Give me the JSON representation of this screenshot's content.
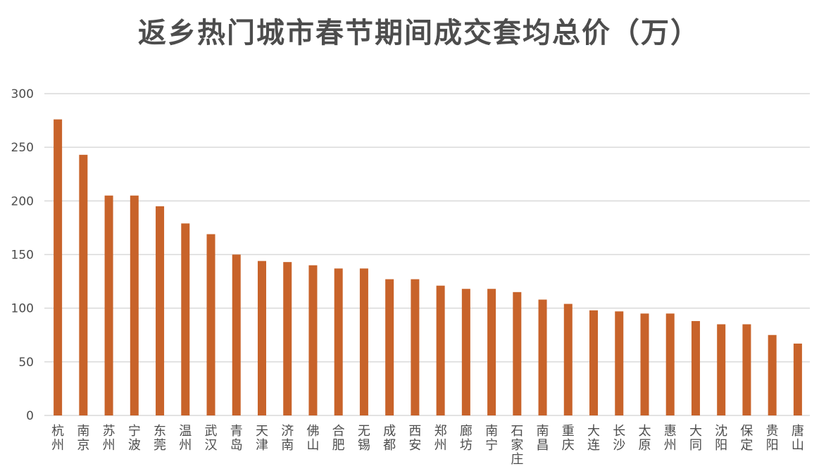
{
  "chart_data": {
    "type": "bar",
    "title": "返乡热门城市春节期间成交套均总价（万）",
    "xlabel": "",
    "ylabel": "",
    "ylim": [
      0,
      300
    ],
    "yticks": [
      0,
      50,
      100,
      150,
      200,
      250,
      300
    ],
    "grid": true,
    "bar_color": "#c8632a",
    "categories": [
      "杭州",
      "南京",
      "苏州",
      "宁波",
      "东莞",
      "温州",
      "武汉",
      "青岛",
      "天津",
      "济南",
      "佛山",
      "合肥",
      "无锡",
      "成都",
      "西安",
      "郑州",
      "廊坊",
      "南宁",
      "石家庄",
      "南昌",
      "重庆",
      "大连",
      "长沙",
      "太原",
      "惠州",
      "大同",
      "沈阳",
      "保定",
      "贵阳",
      "唐山"
    ],
    "values": [
      276,
      243,
      205,
      205,
      195,
      179,
      169,
      150,
      144,
      143,
      140,
      137,
      137,
      127,
      127,
      121,
      118,
      118,
      115,
      108,
      104,
      98,
      97,
      95,
      95,
      88,
      85,
      85,
      75,
      67
    ]
  }
}
